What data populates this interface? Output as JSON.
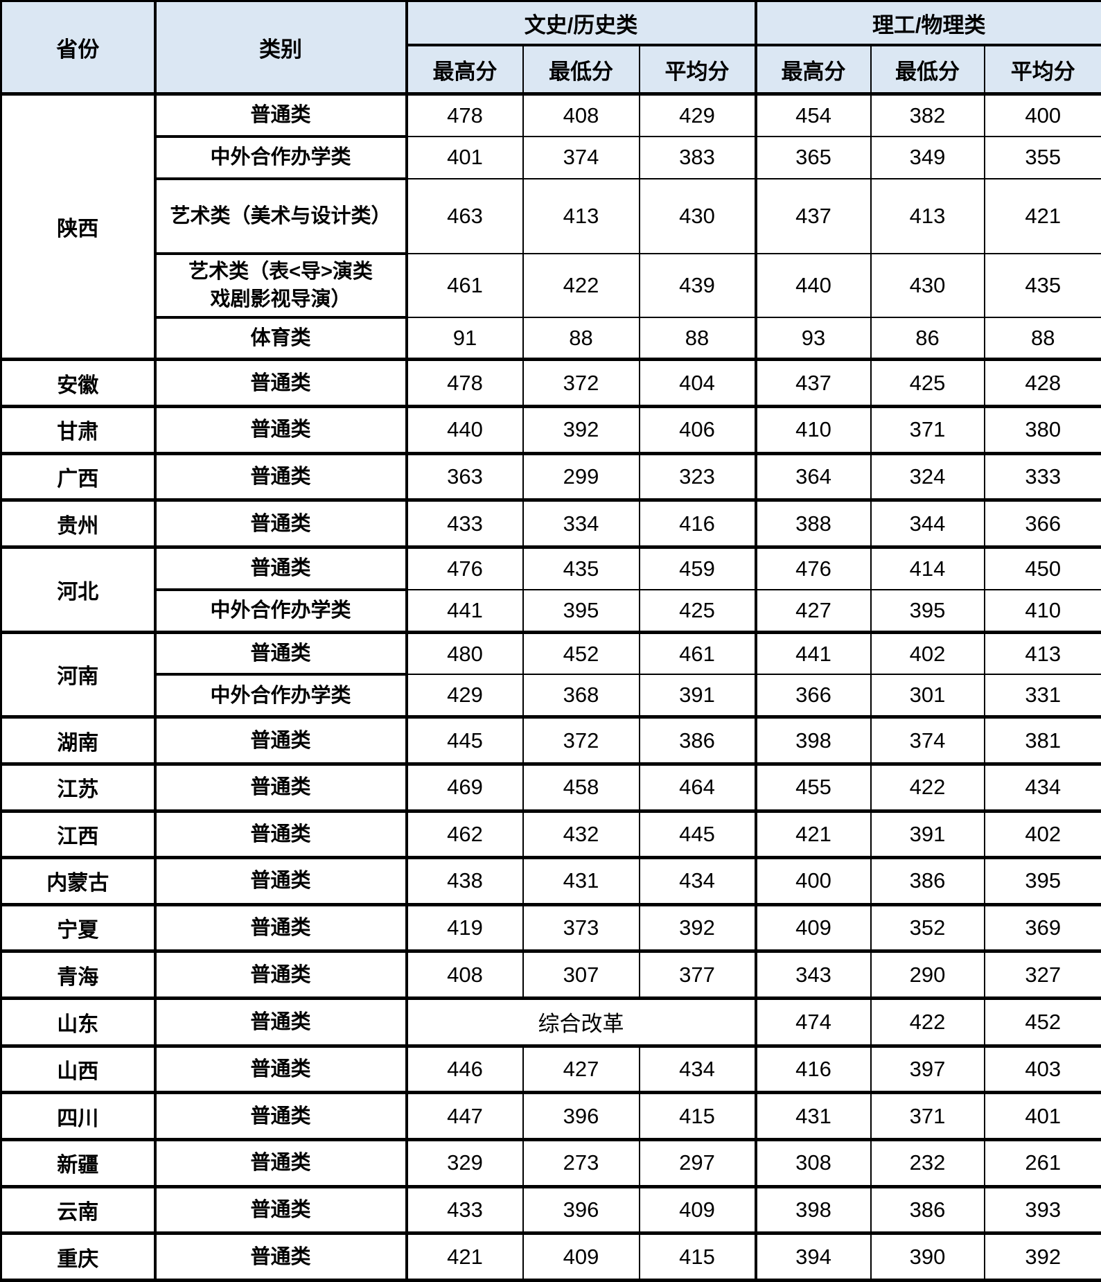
{
  "colors": {
    "header_bg": "#dbe7f3",
    "border": "#000000",
    "text": "#000000",
    "background": "#ffffff"
  },
  "table": {
    "header": {
      "province": "省份",
      "category": "类别",
      "group_wenshi": "文史/历史类",
      "group_ligong": "理工/物理类",
      "sub": [
        "最高分",
        "最低分",
        "平均分"
      ]
    },
    "groups": [
      {
        "province": "陕西",
        "rows": [
          {
            "category": "普通类",
            "wen": [
              "478",
              "408",
              "429"
            ],
            "li": [
              "454",
              "382",
              "400"
            ]
          },
          {
            "category": "中外合作办学类",
            "wen": [
              "401",
              "374",
              "383"
            ],
            "li": [
              "365",
              "349",
              "355"
            ]
          },
          {
            "category": "艺术类（美术与设计类）",
            "wen": [
              "463",
              "413",
              "430"
            ],
            "li": [
              "437",
              "413",
              "421"
            ]
          },
          {
            "category_lines": [
              "艺术类（表<导>演类",
              "戏剧影视导演）"
            ],
            "wen": [
              "461",
              "422",
              "439"
            ],
            "li": [
              "440",
              "430",
              "435"
            ]
          },
          {
            "category": "体育类",
            "wen": [
              "91",
              "88",
              "88"
            ],
            "li": [
              "93",
              "86",
              "88"
            ]
          }
        ]
      },
      {
        "province": "安徽",
        "rows": [
          {
            "category": "普通类",
            "wen": [
              "478",
              "372",
              "404"
            ],
            "li": [
              "437",
              "425",
              "428"
            ]
          }
        ]
      },
      {
        "province": "甘肃",
        "rows": [
          {
            "category": "普通类",
            "wen": [
              "440",
              "392",
              "406"
            ],
            "li": [
              "410",
              "371",
              "380"
            ]
          }
        ]
      },
      {
        "province": "广西",
        "rows": [
          {
            "category": "普通类",
            "wen": [
              "363",
              "299",
              "323"
            ],
            "li": [
              "364",
              "324",
              "333"
            ]
          }
        ]
      },
      {
        "province": "贵州",
        "rows": [
          {
            "category": "普通类",
            "wen": [
              "433",
              "334",
              "416"
            ],
            "li": [
              "388",
              "344",
              "366"
            ]
          }
        ]
      },
      {
        "province": "河北",
        "rows": [
          {
            "category": "普通类",
            "wen": [
              "476",
              "435",
              "459"
            ],
            "li": [
              "476",
              "414",
              "450"
            ]
          },
          {
            "category": "中外合作办学类",
            "wen": [
              "441",
              "395",
              "425"
            ],
            "li": [
              "427",
              "395",
              "410"
            ]
          }
        ]
      },
      {
        "province": "河南",
        "rows": [
          {
            "category": "普通类",
            "wen": [
              "480",
              "452",
              "461"
            ],
            "li": [
              "441",
              "402",
              "413"
            ]
          },
          {
            "category": "中外合作办学类",
            "wen": [
              "429",
              "368",
              "391"
            ],
            "li": [
              "366",
              "301",
              "331"
            ]
          }
        ]
      },
      {
        "province": "湖南",
        "rows": [
          {
            "category": "普通类",
            "wen": [
              "445",
              "372",
              "386"
            ],
            "li": [
              "398",
              "374",
              "381"
            ]
          }
        ]
      },
      {
        "province": "江苏",
        "rows": [
          {
            "category": "普通类",
            "wen": [
              "469",
              "458",
              "464"
            ],
            "li": [
              "455",
              "422",
              "434"
            ]
          }
        ]
      },
      {
        "province": "江西",
        "rows": [
          {
            "category": "普通类",
            "wen": [
              "462",
              "432",
              "445"
            ],
            "li": [
              "421",
              "391",
              "402"
            ]
          }
        ]
      },
      {
        "province": "内蒙古",
        "rows": [
          {
            "category": "普通类",
            "wen": [
              "438",
              "431",
              "434"
            ],
            "li": [
              "400",
              "386",
              "395"
            ]
          }
        ]
      },
      {
        "province": "宁夏",
        "rows": [
          {
            "category": "普通类",
            "wen": [
              "419",
              "373",
              "392"
            ],
            "li": [
              "409",
              "352",
              "369"
            ]
          }
        ]
      },
      {
        "province": "青海",
        "rows": [
          {
            "category": "普通类",
            "wen": [
              "408",
              "307",
              "377"
            ],
            "li": [
              "343",
              "290",
              "327"
            ]
          }
        ]
      },
      {
        "province": "山东",
        "rows": [
          {
            "category": "普通类",
            "wen_merged": "综合改革",
            "li": [
              "474",
              "422",
              "452"
            ]
          }
        ]
      },
      {
        "province": "山西",
        "rows": [
          {
            "category": "普通类",
            "wen": [
              "446",
              "427",
              "434"
            ],
            "li": [
              "416",
              "397",
              "403"
            ]
          }
        ]
      },
      {
        "province": "四川",
        "rows": [
          {
            "category": "普通类",
            "wen": [
              "447",
              "396",
              "415"
            ],
            "li": [
              "431",
              "371",
              "401"
            ]
          }
        ]
      },
      {
        "province": "新疆",
        "rows": [
          {
            "category": "普通类",
            "wen": [
              "329",
              "273",
              "297"
            ],
            "li": [
              "308",
              "232",
              "261"
            ]
          }
        ]
      },
      {
        "province": "云南",
        "rows": [
          {
            "category": "普通类",
            "wen": [
              "433",
              "396",
              "409"
            ],
            "li": [
              "398",
              "386",
              "393"
            ]
          }
        ]
      },
      {
        "province": "重庆",
        "rows": [
          {
            "category": "普通类",
            "wen": [
              "421",
              "409",
              "415"
            ],
            "li": [
              "394",
              "390",
              "392"
            ]
          }
        ]
      }
    ]
  }
}
